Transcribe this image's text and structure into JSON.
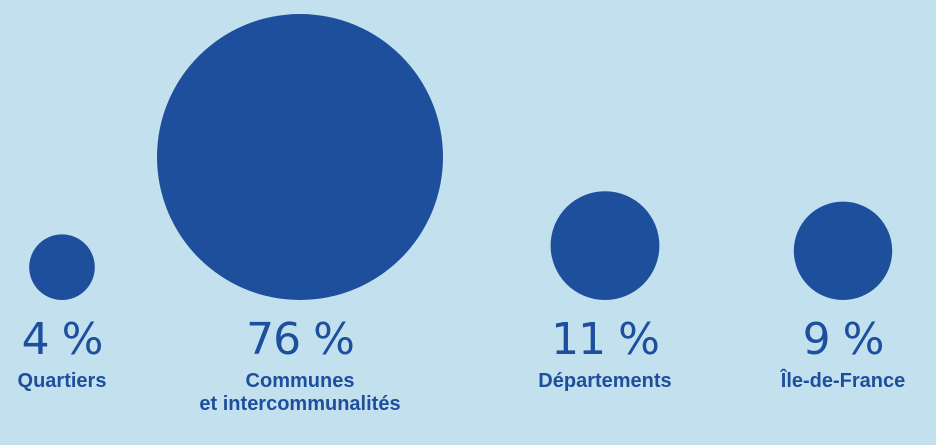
{
  "colors": {
    "background": "#c2e0ee",
    "bubble": "#1d4f9c",
    "text": "#1d4f9c"
  },
  "chart_data": {
    "type": "bubble",
    "unit": "%",
    "categories": [
      {
        "percent_label": "4 %",
        "label_lines": [
          "Quartiers"
        ],
        "value": 4
      },
      {
        "percent_label": "76 %",
        "label_lines": [
          "Communes",
          "et intercommunalités"
        ],
        "value": 76
      },
      {
        "percent_label": "11 %",
        "label_lines": [
          "Départements"
        ],
        "value": 11
      },
      {
        "percent_label": "9 %",
        "label_lines": [
          "Île-de-France"
        ],
        "value": 9
      }
    ]
  }
}
